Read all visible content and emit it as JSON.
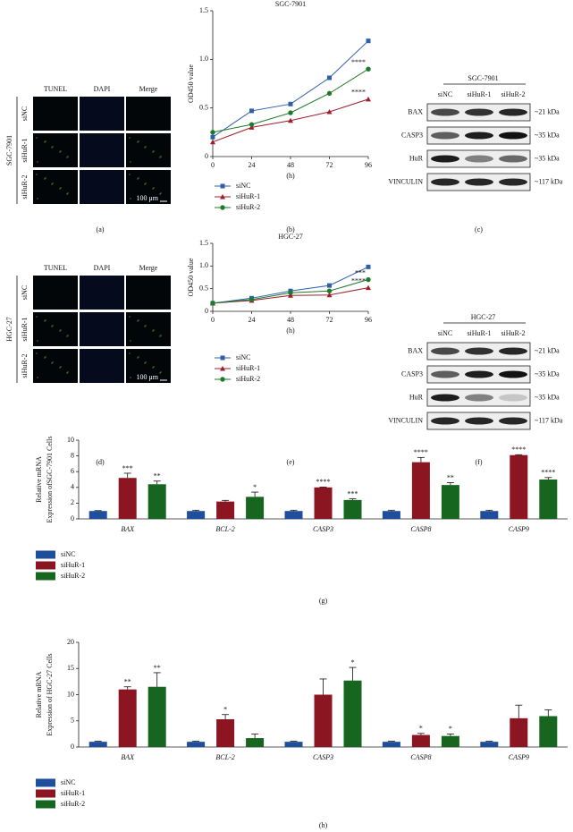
{
  "chart_data": [
    {
      "type": "line",
      "label": "(b)",
      "title": "SGC-7901",
      "xlabel": "(h)",
      "ylabel": "OD450 value",
      "x": [
        0,
        24,
        48,
        72,
        96
      ],
      "xlim": [
        0,
        96
      ],
      "xticks": [
        0,
        24,
        48,
        72,
        96
      ],
      "ylim": [
        0,
        1.5
      ],
      "yticks": [
        0,
        0.5,
        {
          "value": 1,
          "label": "1.0"
        },
        1.5
      ],
      "series": [
        {
          "name": "siNC",
          "color": "#2e5fa8",
          "marker": "square",
          "values": [
            0.2,
            0.47,
            0.54,
            0.81,
            1.19
          ]
        },
        {
          "name": "siHuR-1",
          "color": "#a01c2a",
          "marker": "triangle",
          "values": [
            0.15,
            0.3,
            0.37,
            0.46,
            0.59
          ],
          "annotation": "****"
        },
        {
          "name": "siHuR-2",
          "color": "#1d7a2a",
          "marker": "circle",
          "values": [
            0.25,
            0.33,
            0.45,
            0.65,
            0.9
          ],
          "annotation": "****"
        }
      ]
    },
    {
      "type": "line",
      "label": "(e)",
      "title": "HGC-27",
      "xlabel": "(h)",
      "ylabel": "OD450 value",
      "x": [
        0,
        24,
        48,
        72,
        96
      ],
      "xlim": [
        0,
        96
      ],
      "xticks": [
        0,
        24,
        48,
        72,
        96
      ],
      "ylim": [
        0,
        1.5
      ],
      "yticks": [
        0,
        0.5,
        {
          "value": 1,
          "label": "1.0"
        },
        1.5
      ],
      "series": [
        {
          "name": "siNC",
          "color": "#2e5fa8",
          "marker": "square",
          "values": [
            0.18,
            0.29,
            0.45,
            0.57,
            0.98
          ]
        },
        {
          "name": "siHuR-1",
          "color": "#a01c2a",
          "marker": "triangle",
          "values": [
            0.18,
            0.24,
            0.35,
            0.36,
            0.52
          ],
          "annotation": "****"
        },
        {
          "name": "siHuR-2",
          "color": "#1d7a2a",
          "marker": "circle",
          "values": [
            0.18,
            0.26,
            0.41,
            0.45,
            0.7
          ],
          "annotation": "***"
        }
      ]
    },
    {
      "type": "bar",
      "label": "(g)",
      "ylabel": [
        "Relative mRNA",
        "Expression ofSGC-7901 Cells"
      ],
      "categories": [
        "BAX",
        "BCL-2",
        "CASP3",
        "CASP8",
        "CASP9"
      ],
      "ylim": [
        0,
        10
      ],
      "yticks": [
        0,
        2,
        4,
        6,
        8,
        10
      ],
      "series": [
        {
          "name": "siNC",
          "color": "#1f4e9c",
          "values": [
            1,
            1,
            1,
            1,
            1
          ],
          "errors": [
            0.05,
            0.1,
            0.1,
            0.1,
            0.1
          ],
          "annotations": [
            null,
            null,
            null,
            null,
            null
          ]
        },
        {
          "name": "siHuR-1",
          "color": "#8b1520",
          "values": [
            5.2,
            2.2,
            4.0,
            7.2,
            8.1
          ],
          "errors": [
            0.6,
            0.15,
            0.05,
            0.6,
            0.05
          ],
          "annotations": [
            "***",
            null,
            "****",
            "****",
            "****"
          ]
        },
        {
          "name": "siHuR-2",
          "color": "#16661f",
          "values": [
            4.4,
            2.8,
            2.4,
            4.3,
            5.0
          ],
          "errors": [
            0.4,
            0.6,
            0.15,
            0.3,
            0.25
          ],
          "annotations": [
            "**",
            "*",
            "***",
            "**",
            "****"
          ]
        }
      ]
    },
    {
      "type": "bar",
      "label": "(h)",
      "ylabel": [
        "Relative mRNA",
        "Expression of HGC-27 Cells"
      ],
      "categories": [
        "BAX",
        "BCL-2",
        "CASP3",
        "CASP8",
        "CASP9"
      ],
      "ylim": [
        0,
        20
      ],
      "yticks": [
        0,
        5,
        10,
        15,
        20
      ],
      "series": [
        {
          "name": "siNC",
          "color": "#1f4e9c",
          "values": [
            1,
            1,
            1,
            1,
            1
          ],
          "errors": [
            0.1,
            0.1,
            0.1,
            0.1,
            0.1
          ],
          "annotations": [
            null,
            null,
            null,
            null,
            null
          ]
        },
        {
          "name": "siHuR-1",
          "color": "#8b1520",
          "values": [
            11,
            5.3,
            10,
            2.3,
            5.5
          ],
          "errors": [
            0.5,
            0.9,
            3,
            0.3,
            2.5
          ],
          "annotations": [
            "**",
            "*",
            null,
            "*",
            null
          ]
        },
        {
          "name": "siHuR-2",
          "color": "#16661f",
          "values": [
            11.5,
            1.7,
            12.7,
            2.1,
            5.9
          ],
          "errors": [
            2.7,
            0.8,
            2.5,
            0.4,
            1.2
          ],
          "annotations": [
            "**",
            null,
            "*",
            "*",
            null
          ]
        }
      ]
    }
  ],
  "microscopy": [
    {
      "label": "(a)",
      "group": "SGC-7901",
      "columns": [
        "TUNEL",
        "DAPI",
        "Merge"
      ],
      "rows": [
        "siNC",
        "siHuR-1",
        "siHuR-2"
      ],
      "scale_bar": "100 μm"
    },
    {
      "label": "(d)",
      "group": "HGC-27",
      "columns": [
        "TUNEL",
        "DAPI",
        "Merge"
      ],
      "rows": [
        "siNC",
        "siHuR-1",
        "siHuR-2"
      ],
      "scale_bar": "100 μm"
    }
  ],
  "blots": [
    {
      "label": "(c)",
      "title": "SGC-7901",
      "columns": [
        "siNC",
        "siHuR-1",
        "siHuR-2"
      ],
      "rows": [
        {
          "protein": "BAX",
          "size": "~21 kDa"
        },
        {
          "protein": "CASP3",
          "size": "~35 kDa"
        },
        {
          "protein": "HuR",
          "size": "~35 kDa"
        },
        {
          "protein": "VINCULIN",
          "size": "~117 kDa"
        }
      ]
    },
    {
      "label": "(f)",
      "title": "HGC-27",
      "columns": [
        "siNC",
        "siHuR-1",
        "siHuR-2"
      ],
      "rows": [
        {
          "protein": "BAX",
          "size": "~21 kDa"
        },
        {
          "protein": "CASP3",
          "size": "~35 kDa"
        },
        {
          "protein": "HuR",
          "size": "~35 kDa"
        },
        {
          "protein": "VINCULIN",
          "size": "~117 kDa"
        }
      ]
    }
  ]
}
